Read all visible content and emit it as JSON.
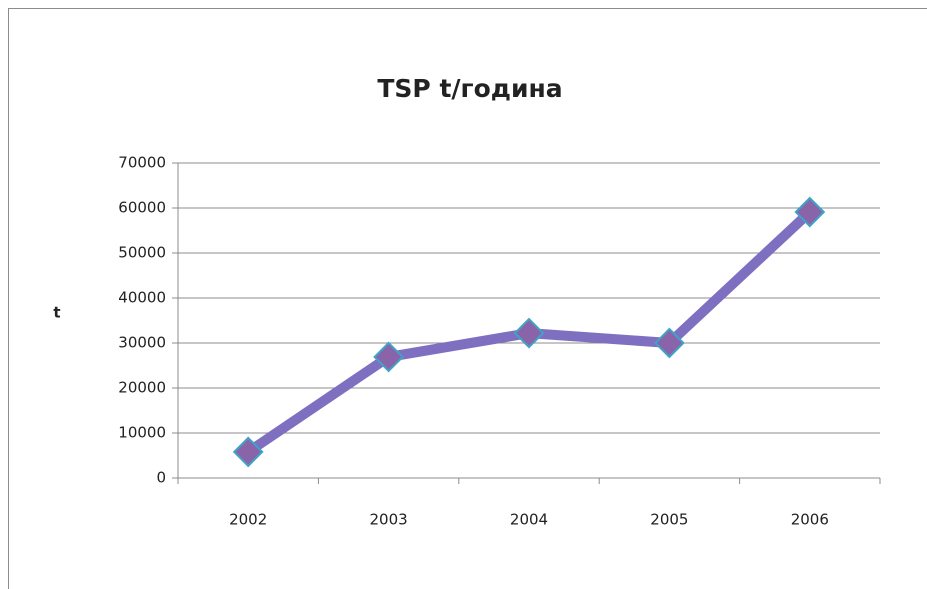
{
  "chart_data": {
    "type": "line",
    "title": "TSP t/година",
    "y_label": "t",
    "categories": [
      "2002",
      "2003",
      "2004",
      "2005",
      "2006"
    ],
    "series": [
      {
        "name": "TSP",
        "color": "#7e6fc0",
        "marker_color": "#8a64a8",
        "values": [
          5800,
          26900,
          32200,
          30000,
          59100
        ]
      }
    ],
    "ylim": [
      0,
      70000
    ],
    "yticks": [
      0,
      10000,
      20000,
      30000,
      40000,
      50000,
      60000,
      70000
    ],
    "grid": true
  }
}
